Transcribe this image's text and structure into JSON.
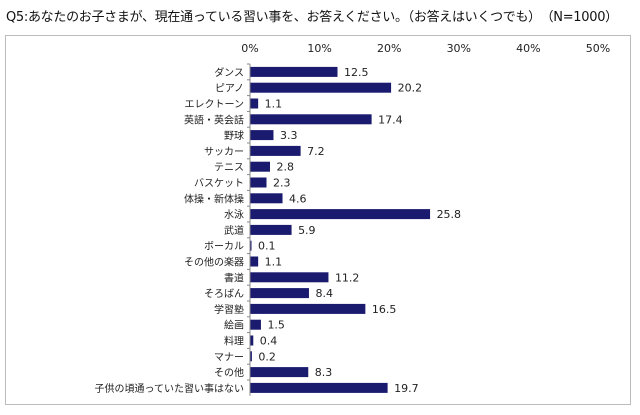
{
  "chart_data": {
    "type": "bar",
    "orientation": "horizontal",
    "title": "Q5:あなたのお子さまが、現在通っている習い事を、お答えください。（お答えはいくつでも）　（N=1000）",
    "categories": [
      "ダンス",
      "ピアノ",
      "エレクトーン",
      "英語・英会話",
      "野球",
      "サッカー",
      "テニス",
      "バスケット",
      "体操・新体操",
      "水泳",
      "武道",
      "ボーカル",
      "その他の楽器",
      "書道",
      "そろばん",
      "学習塾",
      "絵画",
      "料理",
      "マナー",
      "その他",
      "子供の頃通っていた習い事はない"
    ],
    "values": [
      12.5,
      20.2,
      1.1,
      17.4,
      3.3,
      7.2,
      2.8,
      2.3,
      4.6,
      25.8,
      5.9,
      0.1,
      1.1,
      11.2,
      8.4,
      16.5,
      1.5,
      0.4,
      0.2,
      8.3,
      19.7
    ],
    "xlim": [
      0,
      50
    ],
    "xticks": [
      "0%",
      "10%",
      "20%",
      "30%",
      "40%",
      "50%"
    ],
    "axis_position": "top",
    "grid": false,
    "bar_color": "#1a1a6e"
  }
}
